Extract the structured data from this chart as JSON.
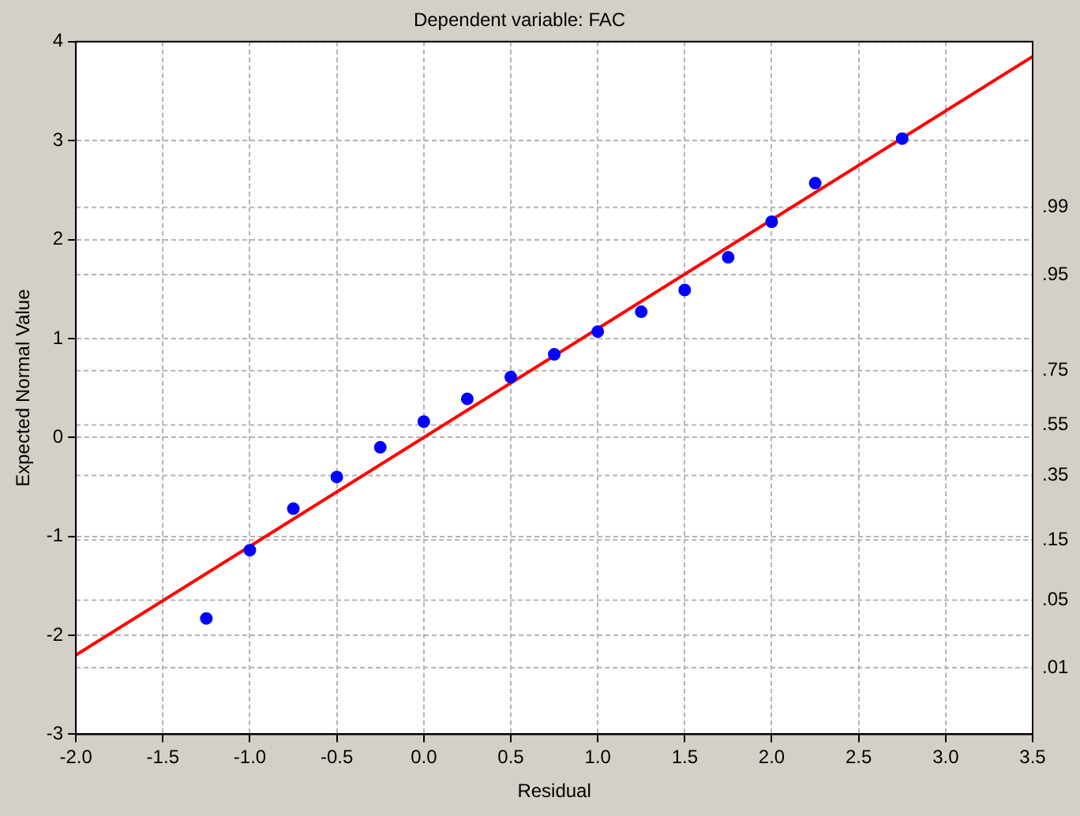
{
  "chart_data": {
    "type": "scatter",
    "title": "Dependent variable: FAC",
    "xlabel": "Residual",
    "ylabel": "Expected Normal Value",
    "xlim": [
      -2.0,
      3.5
    ],
    "xticks": [
      {
        "value": -2,
        "label": "-2.0"
      },
      {
        "value": -1.5,
        "label": "-1.5"
      },
      {
        "value": -1,
        "label": "-1.0"
      },
      {
        "value": -0.5,
        "label": "-0.5"
      },
      {
        "value": 0,
        "label": "0.0"
      },
      {
        "value": 0.5,
        "label": "0.5"
      },
      {
        "value": 1,
        "label": "1.0"
      },
      {
        "value": 1.5,
        "label": "1.5"
      },
      {
        "value": 2,
        "label": "2.0"
      },
      {
        "value": 2.5,
        "label": "2.5"
      },
      {
        "value": 3,
        "label": "3.0"
      },
      {
        "value": 3.5,
        "label": "3.5"
      }
    ],
    "ylim": [
      -3,
      4
    ],
    "yticks": [
      -3,
      -2,
      -1,
      0,
      1,
      2,
      3,
      4
    ],
    "ref_lines": [
      {
        "axis": "y",
        "value": -2.326,
        "color": "#b4b4b4",
        "line_style": "dashed"
      },
      {
        "axis": "y",
        "value": -1.645,
        "color": "#b4b4b4",
        "line_style": "dashed"
      },
      {
        "axis": "y",
        "value": -1.036,
        "color": "#b4b4b4",
        "line_style": "dashed"
      },
      {
        "axis": "y",
        "value": -0.385,
        "color": "#b4b4b4",
        "line_style": "dashed"
      },
      {
        "axis": "y",
        "value": 0.126,
        "color": "#b4b4b4",
        "line_style": "dashed"
      },
      {
        "axis": "y",
        "value": 0.674,
        "color": "#b4b4b4",
        "line_style": "dashed"
      },
      {
        "axis": "y",
        "value": 1.645,
        "color": "#b4b4b4",
        "line_style": "dashed"
      },
      {
        "axis": "y",
        "value": 2.326,
        "color": "#b4b4b4",
        "line_style": "dashed"
      }
    ],
    "annotations": [
      ".01",
      ".05",
      ".15",
      ".35",
      ".55",
      ".75",
      ".95",
      ".99"
    ],
    "grid": true,
    "legend": false,
    "series": [
      {
        "type": "scatter",
        "marker": "circle",
        "color": "#0000ff",
        "x": [
          -1.25,
          -1.0,
          -0.75,
          -0.5,
          -0.25,
          0.0,
          0.25,
          0.5,
          0.75,
          1.0,
          1.25,
          1.5,
          1.75,
          2.0,
          2.25,
          2.75
        ],
        "values": [
          -1.83,
          -1.14,
          -0.72,
          -0.4,
          -0.1,
          0.16,
          0.39,
          0.61,
          0.84,
          1.07,
          1.27,
          1.49,
          1.82,
          2.18,
          2.57,
          3.02
        ]
      },
      {
        "type": "line",
        "color": "#ff0000",
        "x": [
          -2.0,
          3.5
        ],
        "values": [
          -2.2,
          3.85
        ]
      }
    ]
  }
}
